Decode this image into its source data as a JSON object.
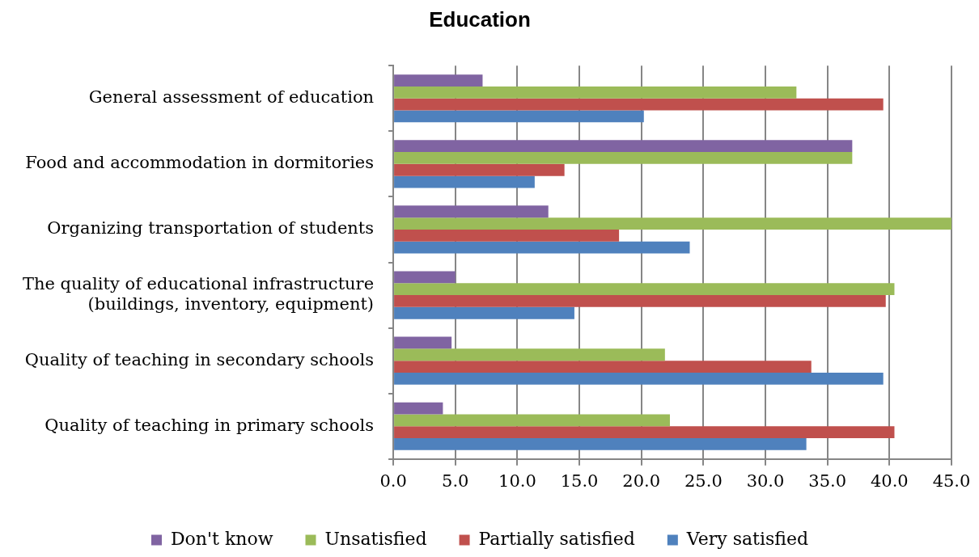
{
  "chart_data": {
    "type": "bar",
    "orientation": "horizontal",
    "title": "Education",
    "categories": [
      "General assessment of education",
      "Food and accommodation in dormitories",
      "Organizing transportation of students",
      "The quality of educational infrastructure\n(buildings, inventory, equipment)",
      "Quality of teaching in secondary schools",
      "Quality of teaching in primary schools"
    ],
    "series": [
      {
        "name": "Don't know",
        "color": "#8064a2",
        "values": [
          7.2,
          37.0,
          12.5,
          5.0,
          4.7,
          4.0
        ]
      },
      {
        "name": "Unsatisfied",
        "color": "#9bbb59",
        "values": [
          32.5,
          37.0,
          45.0,
          40.4,
          21.9,
          22.3
        ]
      },
      {
        "name": "Partially satisfied",
        "color": "#c0504d",
        "values": [
          39.5,
          13.8,
          18.2,
          39.7,
          33.7,
          40.4
        ]
      },
      {
        "name": "Very satisfied",
        "color": "#4f81bd",
        "values": [
          20.2,
          11.4,
          23.9,
          14.6,
          39.5,
          33.3
        ]
      }
    ],
    "xlim": [
      0,
      45
    ],
    "xticks": [
      {
        "value": 0,
        "label": "0.0"
      },
      {
        "value": 5,
        "label": "5.0"
      },
      {
        "value": 10,
        "label": "10.0"
      },
      {
        "value": 15,
        "label": "15.0"
      },
      {
        "value": 20,
        "label": "20.0"
      },
      {
        "value": 25,
        "label": "25.0"
      },
      {
        "value": 30,
        "label": "30.0"
      },
      {
        "value": 35,
        "label": "35.0"
      },
      {
        "value": 40,
        "label": "40.0"
      },
      {
        "value": 45,
        "label": "45.0"
      }
    ],
    "grid": "x",
    "legend": "bottom"
  }
}
